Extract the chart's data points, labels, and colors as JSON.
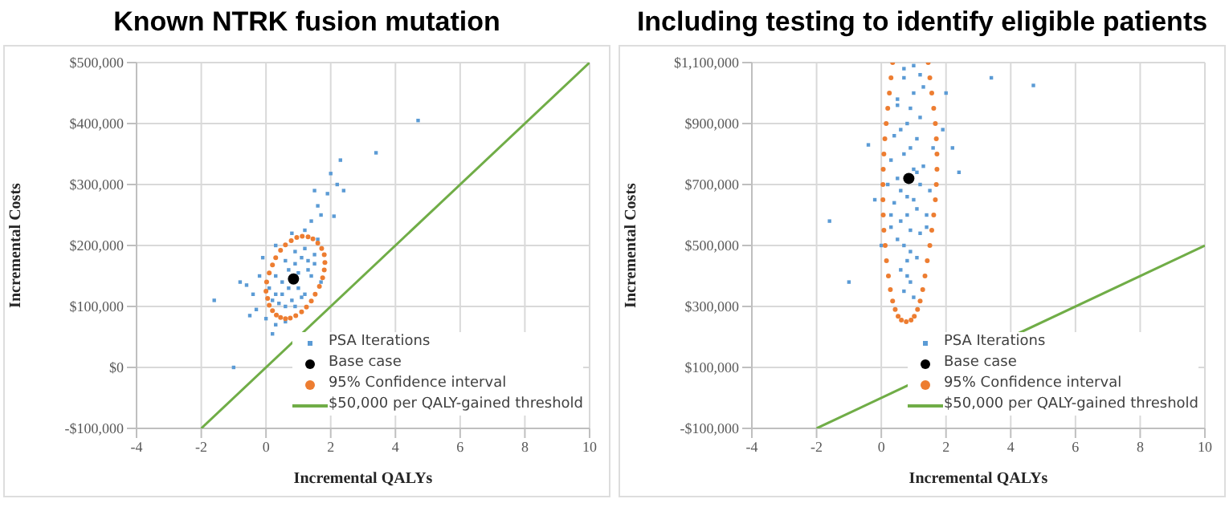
{
  "chart_data": [
    {
      "type": "scatter",
      "title": "Known NTRK fusion mutation",
      "xlabel": "Incremental QALYs",
      "ylabel": "Incremental Costs",
      "xlim": [
        -4,
        10
      ],
      "xticks": [
        -4,
        -2,
        0,
        2,
        4,
        6,
        8,
        10
      ],
      "ylim": [
        -100000,
        500000
      ],
      "yticks": [
        {
          "value": -100000,
          "label": "-$100,000"
        },
        {
          "value": 0,
          "label": "$0"
        },
        {
          "value": 100000,
          "label": "$100,000"
        },
        {
          "value": 200000,
          "label": "$200,000"
        },
        {
          "value": 300000,
          "label": "$300,000"
        },
        {
          "value": 400000,
          "label": "$400,000"
        },
        {
          "value": 500000,
          "label": "$500,000"
        }
      ],
      "grid": true,
      "legend": "bottom right",
      "series": [
        {
          "name": "PSA Iterations",
          "marker": "square",
          "color": "#5b9bd5",
          "x": [
            0.3,
            0.5,
            0.7,
            0.9,
            1.1,
            1.3,
            1.0,
            0.8,
            0.6,
            0.4,
            0.2,
            0.1,
            0.3,
            0.6,
            0.9,
            1.2,
            1.5,
            1.4,
            1.2,
            0.9,
            0.7,
            1.0,
            0.5,
            1.3,
            -0.2,
            -0.4,
            -0.6,
            -0.3,
            0.0,
            0.3,
            0.6,
            1.1,
            1.7,
            1.5,
            1.6,
            1.2,
            0.8,
            0.3,
            -0.1,
            -0.8,
            -1.6,
            -1.0,
            -0.5,
            0.2,
            1.4,
            1.7,
            2.1,
            1.6,
            1.5,
            1.9,
            2.2,
            2.4,
            2.0,
            2.3,
            3.4,
            4.7
          ],
          "values": [
            120000,
            140000,
            160000,
            170000,
            180000,
            175000,
            130000,
            110000,
            100000,
            105000,
            110000,
            130000,
            150000,
            175000,
            190000,
            195000,
            185000,
            150000,
            120000,
            100000,
            130000,
            155000,
            120000,
            160000,
            150000,
            120000,
            135000,
            95000,
            80000,
            70000,
            75000,
            115000,
            140000,
            170000,
            210000,
            225000,
            220000,
            200000,
            180000,
            140000,
            110000,
            0,
            85000,
            55000,
            240000,
            250000,
            248000,
            265000,
            290000,
            285000,
            300000,
            290000,
            318000,
            340000,
            352000,
            405000
          ]
        },
        {
          "name": "Base case",
          "marker": "circle",
          "color": "#000000",
          "x": [
            0.85
          ],
          "values": [
            145000
          ]
        },
        {
          "name": "95% Confidence interval",
          "marker": "circle",
          "color": "#ed7d31",
          "x": [
            1.3,
            1.45,
            1.6,
            1.72,
            1.8,
            1.82,
            1.8,
            1.75,
            1.65,
            1.52,
            1.4,
            1.25,
            1.1,
            0.92,
            0.75,
            0.6,
            0.45,
            0.32,
            0.2,
            0.1,
            0.05,
            0.0,
            0.02,
            0.1,
            0.2,
            0.3,
            0.45,
            0.6,
            0.78,
            0.95,
            1.12
          ],
          "values": [
            214000,
            211000,
            204000,
            195000,
            185000,
            172000,
            160000,
            147000,
            133000,
            120000,
            109000,
            99000,
            91000,
            85000,
            81000,
            80000,
            82000,
            86000,
            93000,
            102000,
            113000,
            125000,
            140000,
            155000,
            168000,
            180000,
            192000,
            201000,
            208000,
            213000,
            215000
          ]
        },
        {
          "name": "$50,000 per QALY-gained threshold",
          "type": "line",
          "marker": "none",
          "line_style": "solid",
          "color": "#70ad47",
          "x": [
            -2,
            10
          ],
          "values": [
            -100000,
            500000
          ]
        }
      ]
    },
    {
      "type": "scatter",
      "title": "Including testing to identify eligible patients",
      "xlabel": "Incremental QALYs",
      "ylabel": "Incremental Costs",
      "xlim": [
        -4,
        10
      ],
      "xticks": [
        -4,
        -2,
        0,
        2,
        4,
        6,
        8,
        10
      ],
      "ylim": [
        -100000,
        1100000
      ],
      "yticks": [
        {
          "value": -100000,
          "label": "-$100,000"
        },
        {
          "value": 100000,
          "label": "$100,000"
        },
        {
          "value": 300000,
          "label": "$300,000"
        },
        {
          "value": 500000,
          "label": "$500,000"
        },
        {
          "value": 700000,
          "label": "$700,000"
        },
        {
          "value": 900000,
          "label": "$900,000"
        },
        {
          "value": 1100000,
          "label": "$1,100,000"
        }
      ],
      "grid": true,
      "legend": "bottom right",
      "series": [
        {
          "name": "PSA Iterations",
          "marker": "square",
          "color": "#5b9bd5",
          "x": [
            0.8,
            0.9,
            1.0,
            0.7,
            0.6,
            1.1,
            1.2,
            0.5,
            0.8,
            0.9,
            1.0,
            0.7,
            0.6,
            1.1,
            1.3,
            0.4,
            0.8,
            0.9,
            1.0,
            0.7,
            0.5,
            1.2,
            0.3,
            1.4,
            0.8,
            0.9,
            0.6,
            1.1,
            0.4,
            1.3,
            0.7,
            1.0,
            0.5,
            1.2,
            0.8,
            0.9,
            0.6,
            1.1,
            0.3,
            1.5,
            0.2,
            1.6,
            0.3,
            1.4,
            0.0,
            -0.2,
            -0.4,
            1.9,
            2.2,
            2.4,
            2.0,
            -1.6,
            -1.0,
            3.4,
            4.7,
            0.7,
            1.0,
            0.5,
            1.2
          ],
          "values": [
            600000,
            550000,
            650000,
            500000,
            580000,
            620000,
            700000,
            520000,
            450000,
            480000,
            750000,
            800000,
            680000,
            850000,
            760000,
            640000,
            900000,
            950000,
            1000000,
            1050000,
            980000,
            920000,
            780000,
            560000,
            400000,
            380000,
            420000,
            460000,
            860000,
            1020000,
            1080000,
            1090000,
            720000,
            540000,
            660000,
            820000,
            880000,
            740000,
            600000,
            680000,
            700000,
            820000,
            560000,
            600000,
            500000,
            650000,
            830000,
            880000,
            820000,
            740000,
            1000000,
            580000,
            380000,
            1050000,
            1025000,
            350000,
            330000,
            960000,
            1060000
          ]
        },
        {
          "name": "Base case",
          "marker": "circle",
          "color": "#000000",
          "x": [
            0.85
          ],
          "values": [
            720000
          ]
        },
        {
          "name": "95% Confidence interval",
          "marker": "circle",
          "color": "#ed7d31",
          "x": [
            0.35,
            0.3,
            0.25,
            0.2,
            0.15,
            0.11,
            0.08,
            0.06,
            0.05,
            0.05,
            0.06,
            0.08,
            0.12,
            0.16,
            0.22,
            0.28,
            0.35,
            0.43,
            0.52,
            0.62,
            0.77,
            0.92,
            1.02,
            1.12,
            1.2,
            1.28,
            1.35,
            1.42,
            1.5,
            1.56,
            1.62,
            1.67,
            1.7,
            1.72,
            1.72,
            1.7,
            1.67,
            1.62,
            1.56,
            1.5,
            1.45
          ],
          "values": [
            1100000,
            1050000,
            1000000,
            950000,
            900000,
            850000,
            800000,
            750000,
            700000,
            650000,
            600000,
            550000,
            500000,
            450000,
            400000,
            355000,
            318000,
            290000,
            268000,
            255000,
            250000,
            255000,
            268000,
            290000,
            318000,
            355000,
            400000,
            450000,
            500000,
            550000,
            600000,
            650000,
            700000,
            750000,
            800000,
            850000,
            900000,
            950000,
            1000000,
            1050000,
            1100000
          ]
        },
        {
          "name": "$50,000 per QALY-gained threshold",
          "type": "line",
          "marker": "none",
          "line_style": "solid",
          "color": "#70ad47",
          "x": [
            -2,
            10
          ],
          "values": [
            -100000,
            500000
          ]
        }
      ]
    }
  ]
}
